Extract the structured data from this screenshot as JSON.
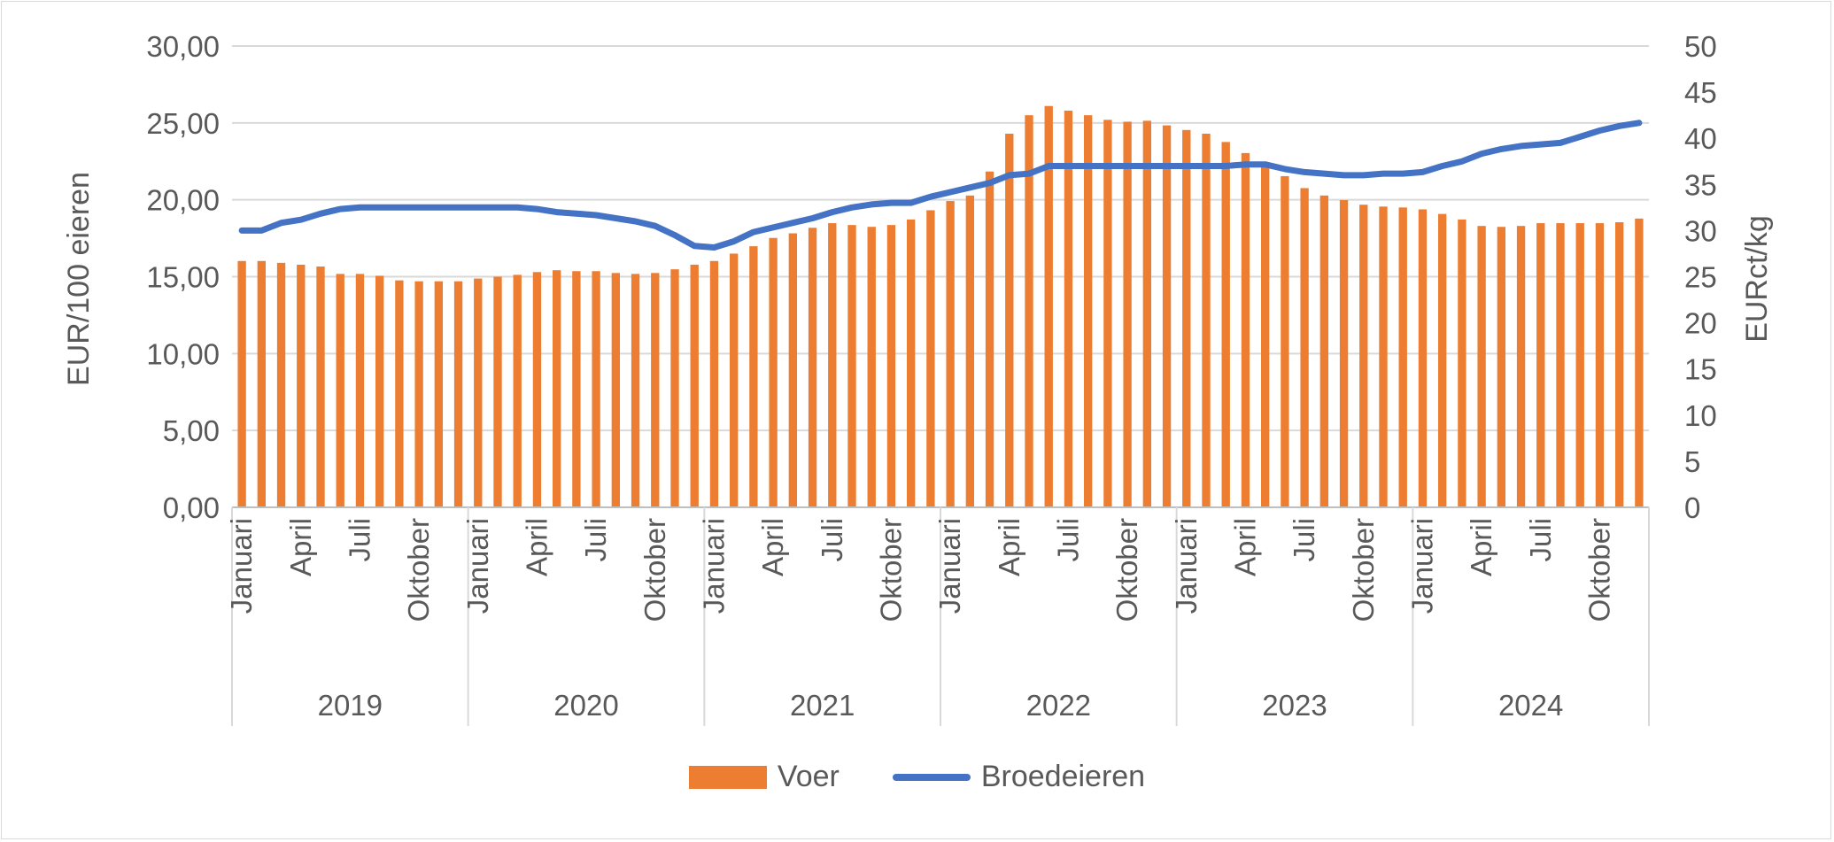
{
  "chart_data": {
    "type": "bar",
    "years": [
      "2019",
      "2020",
      "2021",
      "2022",
      "2023",
      "2024"
    ],
    "month_tick_labels": [
      "Januari",
      "April",
      "Juli",
      "Oktober"
    ],
    "months_per_year": 12,
    "ylabel_left": "EUR/100 eieren",
    "ylabel_right": "EURct/kg",
    "ylim_left": [
      0,
      30
    ],
    "ylim_right": [
      0,
      50
    ],
    "yticks_left": [
      "0,00",
      "5,00",
      "10,00",
      "15,00",
      "20,00",
      "25,00",
      "30,00"
    ],
    "yticks_right": [
      "0",
      "5",
      "10",
      "15",
      "20",
      "25",
      "30",
      "35",
      "40",
      "45",
      "50"
    ],
    "grid": true,
    "legend_position": "bottom",
    "series": [
      {
        "name": "Voer",
        "type": "bar",
        "axis": "right",
        "color": "#ED7D31",
        "values": [
          26.7,
          26.7,
          26.5,
          26.3,
          26.1,
          25.3,
          25.3,
          25.1,
          24.6,
          24.5,
          24.5,
          24.5,
          24.8,
          25.0,
          25.2,
          25.5,
          25.7,
          25.6,
          25.6,
          25.4,
          25.3,
          25.4,
          25.8,
          26.3,
          26.7,
          27.5,
          28.3,
          29.2,
          29.7,
          30.3,
          30.8,
          30.6,
          30.4,
          30.6,
          31.2,
          32.2,
          33.2,
          33.8,
          36.4,
          40.5,
          42.5,
          43.5,
          43.0,
          42.5,
          42.0,
          41.8,
          41.9,
          41.4,
          40.9,
          40.5,
          39.6,
          38.4,
          37.1,
          35.9,
          34.6,
          33.8,
          33.3,
          32.8,
          32.6,
          32.5,
          32.3,
          31.8,
          31.2,
          30.5,
          30.4,
          30.5,
          30.8,
          30.8,
          30.8,
          30.8,
          30.9,
          31.3
        ]
      },
      {
        "name": "Broedeieren",
        "type": "line",
        "axis": "left",
        "color": "#4472C4",
        "values": [
          18.0,
          18.0,
          18.5,
          18.7,
          19.1,
          19.4,
          19.5,
          19.5,
          19.5,
          19.5,
          19.5,
          19.5,
          19.5,
          19.5,
          19.5,
          19.4,
          19.2,
          19.1,
          19.0,
          18.8,
          18.6,
          18.3,
          17.7,
          17.0,
          16.9,
          17.3,
          17.9,
          18.2,
          18.5,
          18.8,
          19.2,
          19.5,
          19.7,
          19.8,
          19.8,
          20.2,
          20.5,
          20.8,
          21.1,
          21.6,
          21.7,
          22.2,
          22.2,
          22.2,
          22.2,
          22.2,
          22.2,
          22.2,
          22.2,
          22.2,
          22.2,
          22.3,
          22.3,
          22.0,
          21.8,
          21.7,
          21.6,
          21.6,
          21.7,
          21.7,
          21.8,
          22.2,
          22.5,
          23.0,
          23.3,
          23.5,
          23.6,
          23.7,
          24.1,
          24.5,
          24.8,
          25.0
        ]
      }
    ]
  },
  "legend": {
    "bar_label": "Voer",
    "line_label": "Broedeieren"
  }
}
